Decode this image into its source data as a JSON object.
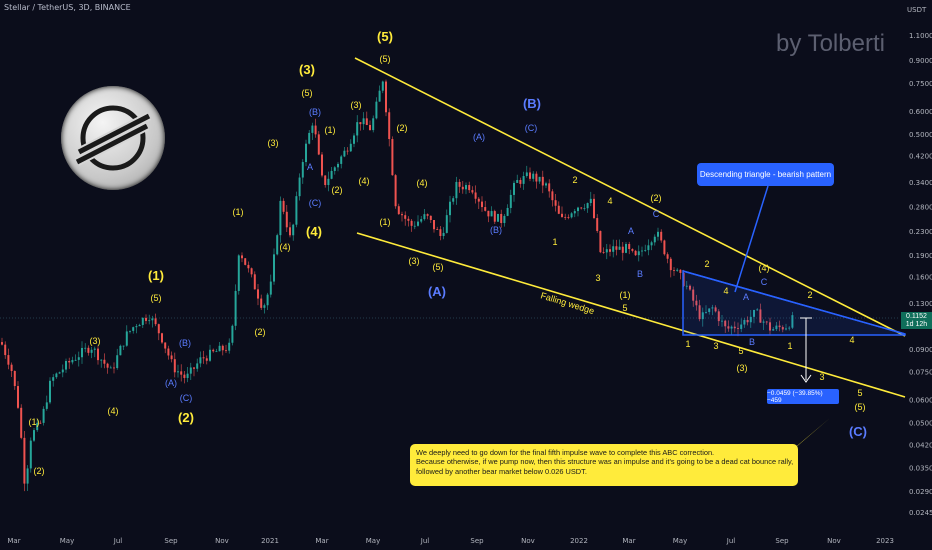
{
  "header": {
    "symbol": "Stellar / TetherUS, 3D, BINANCE",
    "currency": "USDT"
  },
  "watermark": "by Tolberti",
  "callout": "Descending triangle - bearish pattern",
  "note": {
    "lines": [
      "We deeply need to go down for the final fifth impulse wave to complete this ABC correction.",
      "Because otherwise, if we pump now, then this structure was an impulse and it's going to be a dead cat bounce rally,",
      "followed by another bear market below 0.026 USDT."
    ]
  },
  "measure_label": "−0.0459 (−39.85%) −459",
  "wedge_label": "Falling wedge",
  "price_tag": {
    "price": "0.1152",
    "countdown": "1d 12h"
  },
  "colors": {
    "background": "#0b0d1b",
    "up": "#26a69a",
    "down": "#ef5350",
    "yellow": "#ffeb3b",
    "blue": "#2962ff",
    "yellow_text": "#ffeb3b",
    "blue_text": "#5b7cff"
  },
  "chart_data": {
    "type": "candlestick",
    "y_scale": "log",
    "y_ticks": [
      "1.1000",
      "0.9000",
      "0.7500",
      "0.6000",
      "0.5000",
      "0.4200",
      "0.3400",
      "0.2800",
      "0.2300",
      "0.1900",
      "0.1600",
      "0.1300",
      "0.1100",
      "0.0900",
      "0.0750",
      "0.0600",
      "0.0500",
      "0.0420",
      "0.0350",
      "0.0290",
      "0.0245"
    ],
    "x_ticks": [
      "Mar",
      "May",
      "Jul",
      "Sep",
      "Nov",
      "2021",
      "Mar",
      "May",
      "Jul",
      "Sep",
      "Nov",
      "2022",
      "Mar",
      "May",
      "Jul",
      "Sep",
      "Nov",
      "2023"
    ],
    "wave_labels": [
      {
        "t": "(1)",
        "c": "y"
      },
      {
        "t": "(2)",
        "c": "y"
      },
      {
        "t": "(3)",
        "c": "y"
      },
      {
        "t": "(4)",
        "c": "y"
      },
      {
        "t": "(5)",
        "c": "y"
      },
      {
        "t": "(1)",
        "c": "y",
        "big": true
      },
      {
        "t": "(A)",
        "c": "b"
      },
      {
        "t": "(B)",
        "c": "b"
      },
      {
        "t": "(C)",
        "c": "b"
      },
      {
        "t": "(2)",
        "c": "y",
        "big": true
      },
      {
        "t": "(1)",
        "c": "y"
      },
      {
        "t": "(2)",
        "c": "y"
      },
      {
        "t": "(3)",
        "c": "y"
      },
      {
        "t": "(4)",
        "c": "y"
      },
      {
        "t": "(5)",
        "c": "y"
      },
      {
        "t": "(3)",
        "c": "y",
        "big": true
      },
      {
        "t": "(B)",
        "c": "b"
      },
      {
        "t": "A",
        "c": "b"
      },
      {
        "t": "(C)",
        "c": "b"
      },
      {
        "t": "(4)",
        "c": "y",
        "big": true
      },
      {
        "t": "(1)",
        "c": "y"
      },
      {
        "t": "(2)",
        "c": "y"
      },
      {
        "t": "(3)",
        "c": "y"
      },
      {
        "t": "(4)",
        "c": "y"
      },
      {
        "t": "(5)",
        "c": "y"
      },
      {
        "t": "(5)",
        "c": "y",
        "big": true
      },
      {
        "t": "(1)",
        "c": "y"
      },
      {
        "t": "(2)",
        "c": "y"
      },
      {
        "t": "(3)",
        "c": "y"
      },
      {
        "t": "(4)",
        "c": "y"
      },
      {
        "t": "(5)",
        "c": "y"
      },
      {
        "t": "(A)",
        "c": "b",
        "big": true
      },
      {
        "t": "(A)",
        "c": "b"
      },
      {
        "t": "(B)",
        "c": "b"
      },
      {
        "t": "(C)",
        "c": "b"
      },
      {
        "t": "(B)",
        "c": "b",
        "big": true
      },
      {
        "t": "1",
        "c": "y"
      },
      {
        "t": "2",
        "c": "y"
      },
      {
        "t": "3",
        "c": "y"
      },
      {
        "t": "4",
        "c": "y"
      },
      {
        "t": "5",
        "c": "y"
      },
      {
        "t": "A",
        "c": "b"
      },
      {
        "t": "B",
        "c": "b"
      },
      {
        "t": "C",
        "c": "b"
      },
      {
        "t": "(1)",
        "c": "y"
      },
      {
        "t": "(2)",
        "c": "y"
      },
      {
        "t": "1",
        "c": "y"
      },
      {
        "t": "2",
        "c": "y"
      },
      {
        "t": "3",
        "c": "y"
      },
      {
        "t": "4",
        "c": "y"
      },
      {
        "t": "5",
        "c": "y"
      },
      {
        "t": "A",
        "c": "b"
      },
      {
        "t": "B",
        "c": "b"
      },
      {
        "t": "C",
        "c": "b"
      },
      {
        "t": "(3)",
        "c": "y"
      },
      {
        "t": "(4)",
        "c": "y"
      },
      {
        "t": "1",
        "c": "y"
      },
      {
        "t": "2",
        "c": "y"
      },
      {
        "t": "3",
        "c": "y"
      },
      {
        "t": "4",
        "c": "y"
      },
      {
        "t": "5",
        "c": "y"
      },
      {
        "t": "(5)",
        "c": "y"
      },
      {
        "t": "(C)",
        "c": "b",
        "big": true
      }
    ]
  }
}
